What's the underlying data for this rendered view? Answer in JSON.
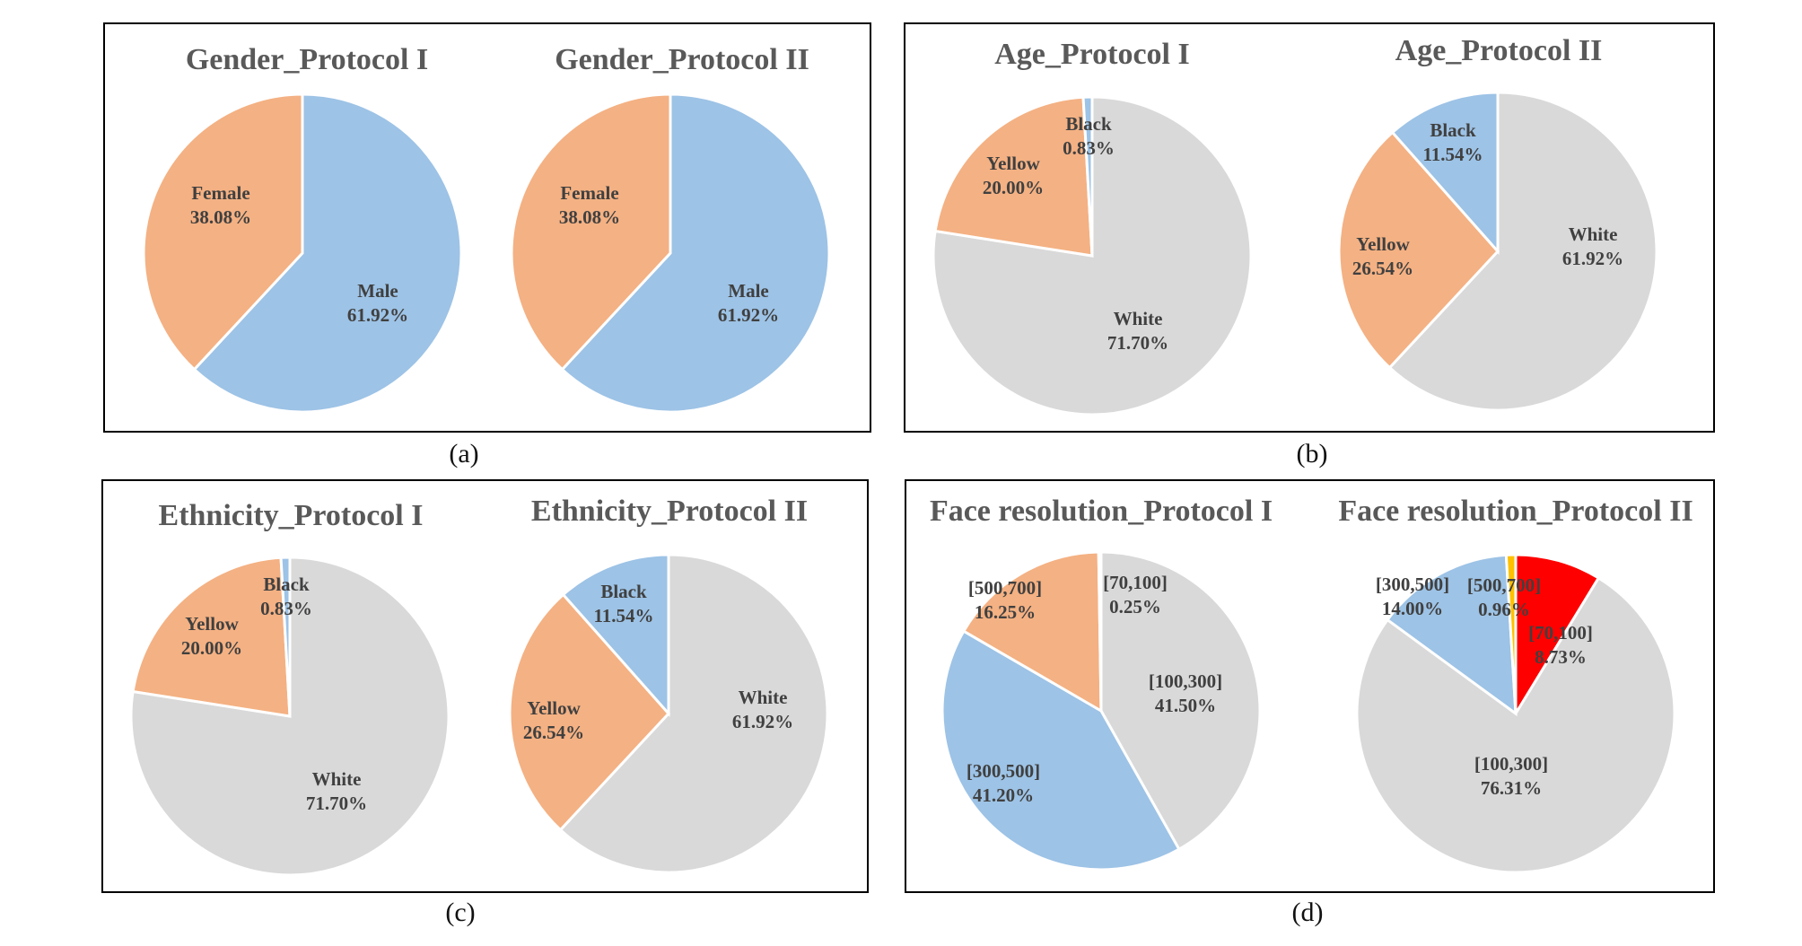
{
  "captions": [
    "(a)",
    "(b)",
    "(c)",
    "(d)"
  ],
  "colors": {
    "blue": "#9DC3E6",
    "orange": "#F4B183",
    "gray": "#D9D9D9",
    "red": "#FF0000",
    "gold": "#FFC000"
  },
  "chart_data": [
    {
      "type": "pie",
      "title": "Gender_Protocol I",
      "slices": [
        {
          "label": "Male",
          "value": 61.92,
          "text": "61.92%"
        },
        {
          "label": "Female",
          "value": 38.08,
          "text": "38.08%"
        }
      ]
    },
    {
      "type": "pie",
      "title": "Gender_Protocol II",
      "slices": [
        {
          "label": "Male",
          "value": 61.92,
          "text": "61.92%"
        },
        {
          "label": "Female",
          "value": 38.08,
          "text": "38.08%"
        }
      ]
    },
    {
      "type": "pie",
      "title": "Age_Protocol I",
      "slices": [
        {
          "label": "White",
          "value": 71.7,
          "text": "71.70%"
        },
        {
          "label": "Yellow",
          "value": 20.0,
          "text": "20.00%"
        },
        {
          "label": "Black",
          "value": 0.83,
          "text": "0.83%"
        }
      ]
    },
    {
      "type": "pie",
      "title": "Age_Protocol II",
      "slices": [
        {
          "label": "White",
          "value": 61.92,
          "text": "61.92%"
        },
        {
          "label": "Yellow",
          "value": 26.54,
          "text": "26.54%"
        },
        {
          "label": "Black",
          "value": 11.54,
          "text": "11.54%"
        }
      ]
    },
    {
      "type": "pie",
      "title": "Ethnicity_Protocol I",
      "slices": [
        {
          "label": "White",
          "value": 71.7,
          "text": "71.70%"
        },
        {
          "label": "Yellow",
          "value": 20.0,
          "text": "20.00%"
        },
        {
          "label": "Black",
          "value": 0.83,
          "text": "0.83%"
        }
      ]
    },
    {
      "type": "pie",
      "title": "Ethnicity_Protocol II",
      "slices": [
        {
          "label": "White",
          "value": 61.92,
          "text": "61.92%"
        },
        {
          "label": "Yellow",
          "value": 26.54,
          "text": "26.54%"
        },
        {
          "label": "Black",
          "value": 11.54,
          "text": "11.54%"
        }
      ]
    },
    {
      "type": "pie",
      "title": "Face resolution_Protocol I",
      "slices": [
        {
          "label": "[100,300]",
          "value": 41.5,
          "text": "41.50%"
        },
        {
          "label": "[300,500]",
          "value": 41.2,
          "text": "41.20%"
        },
        {
          "label": "[500,700]",
          "value": 16.25,
          "text": "16.25%"
        },
        {
          "label": "[70,100]",
          "value": 0.25,
          "text": "0.25%"
        }
      ]
    },
    {
      "type": "pie",
      "title": "Face resolution_Protocol II",
      "slices": [
        {
          "label": "[70,100]",
          "value": 8.73,
          "text": "8.73%"
        },
        {
          "label": "[100,300]",
          "value": 76.31,
          "text": "76.31%"
        },
        {
          "label": "[300,500]",
          "value": 14.0,
          "text": "14.00%"
        },
        {
          "label": "[500,700]",
          "value": 0.96,
          "text": "0.96%"
        }
      ]
    }
  ]
}
